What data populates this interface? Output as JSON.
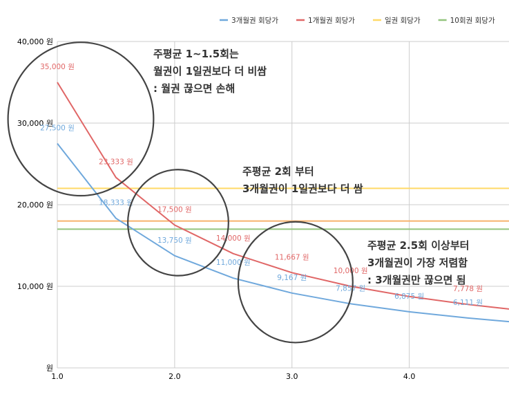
{
  "chart_data": {
    "type": "line",
    "title": "",
    "xlabel": "",
    "ylabel": "",
    "xlim": [
      1.0,
      4.85
    ],
    "ylim": [
      0,
      40000
    ],
    "grid": true,
    "legend_position": "top",
    "x_ticks": [
      {
        "value": 1.0,
        "label": "1.0"
      },
      {
        "value": 2.0,
        "label": "2.0"
      },
      {
        "value": 3.0,
        "label": "3.0"
      },
      {
        "value": 4.0,
        "label": "4.0"
      }
    ],
    "y_ticks": [
      {
        "value": 0,
        "label": "원"
      },
      {
        "value": 10000,
        "label": "10,000 원"
      },
      {
        "value": 20000,
        "label": "20,000 원"
      },
      {
        "value": 30000,
        "label": "30,000 원"
      },
      {
        "value": 40000,
        "label": "40,000 원"
      }
    ],
    "series": [
      {
        "name": "3개월권 회당가",
        "color": "#6fa8dc",
        "x": [
          1.0,
          1.5,
          2.0,
          2.5,
          3.0,
          3.5,
          4.0,
          4.5,
          4.85
        ],
        "values": [
          27500,
          18333,
          13750,
          11000,
          9167,
          7857,
          6875,
          6111,
          5670
        ],
        "labels": [
          {
            "x": 1.0,
            "y": 27500,
            "text": "27,500 원"
          },
          {
            "x": 1.5,
            "y": 18333,
            "text": "18,333 원"
          },
          {
            "x": 2.0,
            "y": 13750,
            "text": "13,750 원"
          },
          {
            "x": 2.5,
            "y": 11000,
            "text": "11,000 원"
          },
          {
            "x": 3.0,
            "y": 9167,
            "text": "9,167 원"
          },
          {
            "x": 3.5,
            "y": 7857,
            "text": "7,857 원"
          },
          {
            "x": 4.0,
            "y": 6875,
            "text": "6,875 원"
          },
          {
            "x": 4.5,
            "y": 6111,
            "text": "6,111 원"
          }
        ]
      },
      {
        "name": "1개월권 회당가",
        "color": "#e06666",
        "x": [
          1.0,
          1.5,
          2.0,
          2.5,
          3.0,
          3.5,
          4.0,
          4.5,
          4.85
        ],
        "values": [
          35000,
          23333,
          17500,
          14000,
          11667,
          10000,
          8750,
          7778,
          7216
        ],
        "labels": [
          {
            "x": 1.0,
            "y": 35000,
            "text": "35,000 원"
          },
          {
            "x": 1.5,
            "y": 23333,
            "text": "23,333 원"
          },
          {
            "x": 2.0,
            "y": 17500,
            "text": "17,500 원"
          },
          {
            "x": 2.5,
            "y": 14000,
            "text": "14,000 원"
          },
          {
            "x": 3.0,
            "y": 11667,
            "text": "11,667 원"
          },
          {
            "x": 3.5,
            "y": 10000,
            "text": "10,000 원"
          },
          {
            "x": 4.5,
            "y": 7778,
            "text": "7,778 원"
          }
        ]
      },
      {
        "name": "일권 회당가",
        "color": "#ffd966",
        "x": [
          1.0,
          4.85
        ],
        "values": [
          22000,
          22000
        ],
        "labels": []
      },
      {
        "name": "10회권 회당가",
        "color": "#93c47d",
        "x": [
          1.0,
          4.85
        ],
        "values": [
          17000,
          17000
        ],
        "labels": []
      },
      {
        "name": "",
        "color": "#f6b26b",
        "x": [
          1.0,
          4.85
        ],
        "values": [
          18000,
          18000
        ],
        "labels": []
      }
    ],
    "annotations": [
      {
        "lines": [
          "주평균 1~1.5회는",
          "월권이 1일권보다 더 비쌈",
          ": 월권 끊으면 손해"
        ]
      },
      {
        "lines": [
          "주평균 2회 부터",
          "3개월권이 1일권보다 더 쌈"
        ]
      },
      {
        "lines": [
          "주평균 2.5회 이상부터",
          "3개월권이 가장 저렴함",
          ": 3개월권만 끊으면 됨"
        ]
      }
    ],
    "circles": [
      {
        "x": 1.2,
        "y": 30500,
        "ry_value": 9400
      },
      {
        "x": 2.03,
        "y": 17800,
        "ry_value": 6500
      },
      {
        "x": 3.03,
        "y": 10500,
        "ry_value": 7400
      }
    ]
  },
  "colors": {
    "grid": "#cccccc",
    "axis_text": "#000000",
    "annotation_text": "#333333",
    "circle": "#444444"
  }
}
